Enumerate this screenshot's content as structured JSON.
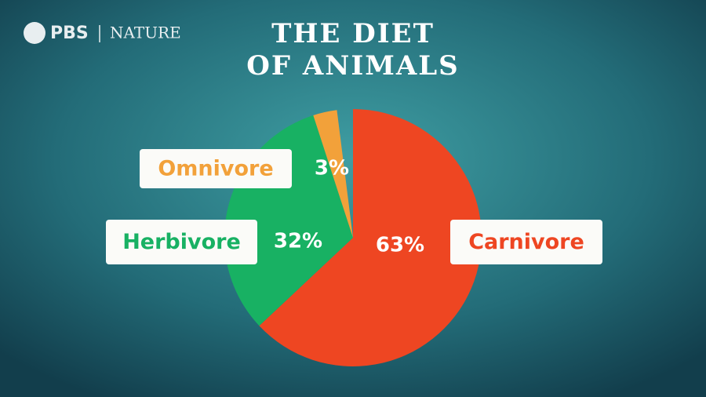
{
  "header": {
    "logo": "PBS",
    "program": "NATURE"
  },
  "chart_data": {
    "type": "pie",
    "title": [
      "THE DIET",
      "OF ANIMALS"
    ],
    "categories": [
      "Carnivore",
      "Herbivore",
      "Omnivore"
    ],
    "values": [
      63,
      32,
      3
    ],
    "value_labels": [
      "63%",
      "32%",
      "3%"
    ],
    "colors": [
      "#ee4622",
      "#18b163",
      "#f2a13a"
    ]
  }
}
